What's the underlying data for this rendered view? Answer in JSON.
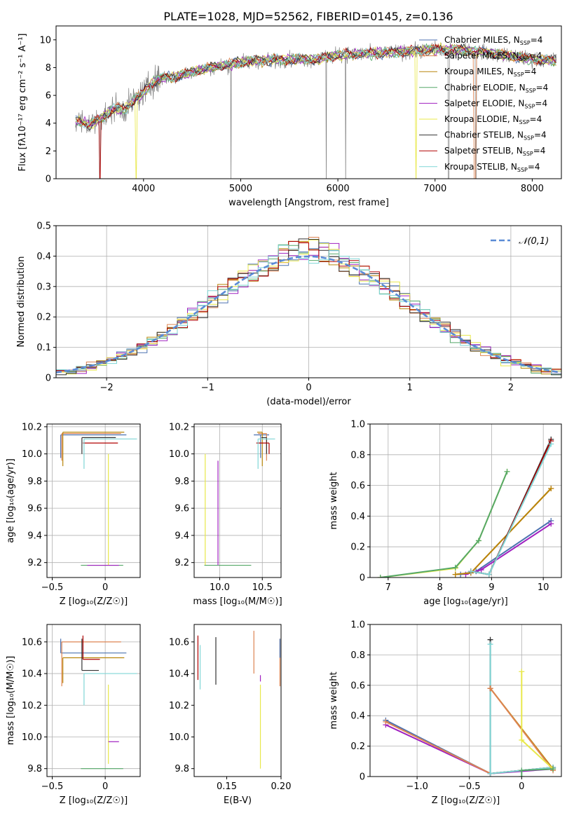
{
  "figure_title": "PLATE=1028, MJD=52562, FIBERID=0145, z=0.136",
  "colors": {
    "chabrier_miles": "#4c72b0",
    "salpeter_miles": "#dd8452",
    "kroupa_miles": "#b8860b",
    "chabrier_elodie": "#55a868",
    "salpeter_elodie": "#a020c0",
    "kroupa_elodie": "#e8e84a",
    "chabrier_stelib": "#333333",
    "salpeter_stelib": "#b00000",
    "kroupa_stelib": "#7fd6d6",
    "normal": "#5b8bd6",
    "data": "#808080"
  },
  "chart_data": [
    {
      "id": "spectrum",
      "type": "line",
      "xlabel": "wavelength [Angstrom, rest frame]",
      "ylabel": "Flux [fλ10⁻¹⁷ erg cm⁻² s⁻¹ A⁻¹]",
      "xlim": [
        3100,
        8300
      ],
      "ylim": [
        0,
        11
      ],
      "xticks": [
        4000,
        5000,
        6000,
        7000,
        8000
      ],
      "yticks": [
        0,
        2,
        4,
        6,
        8,
        10
      ],
      "grid": false,
      "legend_position": "top-right",
      "series_names": [
        "Chabrier MILES, N_SSP=4",
        "Salpeter MILES, N_SSP=4",
        "Kroupa MILES, N_SSP=4",
        "Chabrier ELODIE, N_SSP=4",
        "Salpeter ELODIE, N_SSP=4",
        "Kroupa ELODIE, N_SSP=4",
        "Chabrier STELIB, N_SSP=4",
        "Salpeter STELIB, N_SSP=4",
        "Kroupa STELIB, N_SSP=4"
      ],
      "continuum": [
        [
          3300,
          4.2
        ],
        [
          3450,
          3.9
        ],
        [
          3600,
          4.5
        ],
        [
          3700,
          5.1
        ],
        [
          3800,
          5.0
        ],
        [
          3900,
          5.6
        ],
        [
          4000,
          6.2
        ],
        [
          4100,
          7.0
        ],
        [
          4200,
          7.3
        ],
        [
          4300,
          7.3
        ],
        [
          4500,
          7.7
        ],
        [
          4700,
          8.0
        ],
        [
          5000,
          8.4
        ],
        [
          5200,
          8.5
        ],
        [
          5500,
          8.6
        ],
        [
          5800,
          8.6
        ],
        [
          6000,
          8.9
        ],
        [
          6300,
          9.0
        ],
        [
          6600,
          9.1
        ],
        [
          7000,
          9.3
        ],
        [
          7300,
          9.3
        ],
        [
          7600,
          9.0
        ],
        [
          7800,
          8.8
        ],
        [
          8000,
          8.6
        ],
        [
          8200,
          8.5
        ]
      ]
    },
    {
      "id": "residuals",
      "type": "line",
      "xlabel": "(data-model)/error",
      "ylabel": "Normed distribution",
      "xlim": [
        -2.5,
        2.5
      ],
      "ylim": [
        0,
        0.5
      ],
      "xticks": [
        -2,
        -1,
        0,
        1,
        2
      ],
      "yticks": [
        0.0,
        0.1,
        0.2,
        0.3,
        0.4,
        0.5
      ],
      "grid": true,
      "legend_position": "top-right",
      "normal_label": "𝒩(0,1)",
      "normal_mean": 0,
      "normal_std": 1
    },
    {
      "id": "age_vs_z",
      "type": "scatter",
      "xlabel": "Z [log₁₀(Z/Z☉)]",
      "ylabel": "age  [log₁₀(age/yr)]",
      "xlim": [
        -0.55,
        0.33
      ],
      "ylim": [
        9.09,
        10.22
      ],
      "xticks": [
        -0.5,
        0.0
      ],
      "yticks": [
        9.2,
        9.4,
        9.6,
        9.8,
        10.0,
        10.2
      ],
      "grid": true,
      "segments": [
        {
          "s": "chabrier_miles",
          "x": -0.42,
          "y": 10.14,
          "xerr": [
            0.0,
            0.62
          ],
          "yerr": [
            0.17,
            0.0
          ]
        },
        {
          "s": "salpeter_miles",
          "x": -0.41,
          "y": 10.15,
          "xerr": [
            0.0,
            0.56
          ],
          "yerr": [
            0.2,
            0.0
          ]
        },
        {
          "s": "kroupa_miles",
          "x": -0.4,
          "y": 10.16,
          "xerr": [
            0.0,
            0.58
          ],
          "yerr": [
            0.25,
            0.0
          ]
        },
        {
          "s": "kroupa_elodie",
          "x": 0.03,
          "y": 10.0,
          "xerr": [
            0.0,
            0.0
          ],
          "yerr": [
            0.82,
            0.0
          ]
        },
        {
          "s": "chabrier_elodie",
          "x": 0.02,
          "y": 9.18,
          "xerr": [
            0.25,
            0.15
          ],
          "yerr": [
            0.0,
            0.0
          ]
        },
        {
          "s": "salpeter_elodie",
          "x": 0.03,
          "y": 9.18,
          "xerr": [
            0.2,
            0.1
          ],
          "yerr": [
            0.0,
            0.0
          ]
        },
        {
          "s": "chabrier_stelib",
          "x": -0.22,
          "y": 10.12,
          "xerr": [
            0.0,
            0.32
          ],
          "yerr": [
            0.12,
            0.0
          ]
        },
        {
          "s": "salpeter_stelib",
          "x": -0.21,
          "y": 10.08,
          "xerr": [
            0.0,
            0.33
          ],
          "yerr": [
            0.0,
            0.0
          ]
        },
        {
          "s": "kroupa_stelib",
          "x": -0.2,
          "y": 10.11,
          "xerr": [
            0.0,
            0.5
          ],
          "yerr": [
            0.22,
            0.0
          ]
        }
      ]
    },
    {
      "id": "age_vs_mass",
      "type": "scatter",
      "xlabel": "mass [log₁₀(M/M☉)]",
      "ylabel": "",
      "xlim": [
        9.7,
        10.72
      ],
      "ylim": [
        9.09,
        10.22
      ],
      "xticks": [
        10.0,
        10.5
      ],
      "yticks": [
        9.2,
        9.4,
        9.6,
        9.8,
        10.0,
        10.2
      ],
      "grid": true,
      "segments": [
        {
          "s": "chabrier_miles",
          "x": 10.48,
          "y": 10.14,
          "xerr": [
            0.08,
            0.1
          ],
          "yerr": [
            0.17,
            0.0
          ]
        },
        {
          "s": "salpeter_miles",
          "x": 10.55,
          "y": 10.15,
          "xerr": [
            0.1,
            0.0
          ],
          "yerr": [
            0.2,
            0.0
          ]
        },
        {
          "s": "kroupa_miles",
          "x": 10.5,
          "y": 10.16,
          "xerr": [
            0.06,
            0.0
          ],
          "yerr": [
            0.25,
            0.0
          ]
        },
        {
          "s": "kroupa_elodie",
          "x": 9.83,
          "y": 10.0,
          "xerr": [
            0.0,
            0.0
          ],
          "yerr": [
            0.82,
            0.0
          ]
        },
        {
          "s": "chabrier_elodie",
          "x": 9.82,
          "y": 9.18,
          "xerr": [
            0.0,
            0.55
          ],
          "yerr": [
            0.0,
            0.0
          ]
        },
        {
          "s": "salpeter_elodie",
          "x": 9.98,
          "y": 9.95,
          "xerr": [
            0.0,
            0.0
          ],
          "yerr": [
            0.77,
            0.0
          ]
        },
        {
          "s": "chabrier_stelib",
          "x": 10.55,
          "y": 10.12,
          "xerr": [
            0.06,
            0.0
          ],
          "yerr": [
            0.12,
            0.0
          ]
        },
        {
          "s": "salpeter_stelib",
          "x": 10.58,
          "y": 10.08,
          "xerr": [
            0.15,
            0.0
          ],
          "yerr": [
            0.08,
            0.0
          ]
        },
        {
          "s": "kroupa_stelib",
          "x": 10.45,
          "y": 10.11,
          "xerr": [
            0.0,
            0.2
          ],
          "yerr": [
            0.22,
            0.0
          ]
        }
      ]
    },
    {
      "id": "weight_vs_age",
      "type": "line",
      "xlabel": "age  [log₁₀(age/yr)]",
      "ylabel": "mass weight",
      "xlim": [
        6.65,
        10.35
      ],
      "ylim": [
        0,
        1.0
      ],
      "xticks": [
        7,
        8,
        9,
        10
      ],
      "yticks": [
        0.0,
        0.2,
        0.4,
        0.6,
        0.8,
        1.0
      ],
      "grid": true,
      "series": [
        {
          "s": "kroupa_elodie",
          "x": [
            6.85,
            8.3,
            8.75,
            9.3
          ],
          "y": [
            0.0,
            0.06,
            0.24,
            0.69
          ]
        },
        {
          "s": "chabrier_elodie",
          "x": [
            6.85,
            8.3,
            8.75,
            9.3
          ],
          "y": [
            0.0,
            0.065,
            0.24,
            0.69
          ]
        },
        {
          "s": "salpeter_miles",
          "x": [
            8.3,
            8.6,
            10.15
          ],
          "y": [
            0.02,
            0.03,
            0.58
          ]
        },
        {
          "s": "chabrier_miles",
          "x": [
            8.4,
            8.7,
            10.15
          ],
          "y": [
            0.02,
            0.04,
            0.37
          ]
        },
        {
          "s": "salpeter_elodie",
          "x": [
            8.5,
            8.8,
            10.15
          ],
          "y": [
            0.02,
            0.05,
            0.35
          ]
        },
        {
          "s": "kroupa_miles",
          "x": [
            8.3,
            8.6,
            10.15
          ],
          "y": [
            0.02,
            0.03,
            0.58
          ]
        },
        {
          "s": "chabrier_stelib",
          "x": [
            8.6,
            8.95,
            10.15
          ],
          "y": [
            0.04,
            0.02,
            0.9
          ]
        },
        {
          "s": "salpeter_stelib",
          "x": [
            8.6,
            8.95,
            10.15
          ],
          "y": [
            0.04,
            0.02,
            0.89
          ]
        },
        {
          "s": "kroupa_stelib",
          "x": [
            8.6,
            8.95,
            10.15
          ],
          "y": [
            0.04,
            0.02,
            0.87
          ]
        }
      ]
    },
    {
      "id": "mass_vs_z",
      "type": "scatter",
      "xlabel": "Z [log₁₀(Z/Z☉)]",
      "ylabel": "mass [log₁₀(M/M☉)]",
      "xlim": [
        -0.55,
        0.33
      ],
      "ylim": [
        9.75,
        10.71
      ],
      "xticks": [
        -0.5,
        0.0
      ],
      "yticks": [
        9.8,
        10.0,
        10.2,
        10.4,
        10.6
      ],
      "grid": true,
      "segments": [
        {
          "s": "chabrier_miles",
          "x": -0.42,
          "y": 10.53,
          "xerr": [
            0.0,
            0.62
          ],
          "yerr": [
            0.0,
            0.09
          ]
        },
        {
          "s": "salpeter_miles",
          "x": -0.41,
          "y": 10.6,
          "xerr": [
            0.0,
            0.56
          ],
          "yerr": [
            0.28,
            0.0
          ]
        },
        {
          "s": "kroupa_miles",
          "x": -0.4,
          "y": 10.5,
          "xerr": [
            0.0,
            0.58
          ],
          "yerr": [
            0.16,
            0.0
          ]
        },
        {
          "s": "kroupa_elodie",
          "x": 0.03,
          "y": 10.33,
          "xerr": [
            0.0,
            0.0
          ],
          "yerr": [
            0.5,
            0.0
          ]
        },
        {
          "s": "chabrier_elodie",
          "x": 0.02,
          "y": 9.8,
          "xerr": [
            0.25,
            0.15
          ],
          "yerr": [
            0.0,
            0.0
          ]
        },
        {
          "s": "salpeter_elodie",
          "x": 0.03,
          "y": 9.97,
          "xerr": [
            0.0,
            0.1
          ],
          "yerr": [
            0.0,
            0.0
          ]
        },
        {
          "s": "chabrier_stelib",
          "x": -0.22,
          "y": 10.42,
          "xerr": [
            0.0,
            0.16
          ],
          "yerr": [
            0.0,
            0.2
          ]
        },
        {
          "s": "salpeter_stelib",
          "x": -0.21,
          "y": 10.49,
          "xerr": [
            0.0,
            0.16
          ],
          "yerr": [
            0.0,
            0.15
          ]
        },
        {
          "s": "kroupa_stelib",
          "x": -0.2,
          "y": 10.4,
          "xerr": [
            0.0,
            0.5
          ],
          "yerr": [
            0.2,
            0.0
          ]
        }
      ]
    },
    {
      "id": "mass_vs_ebv",
      "type": "scatter",
      "xlabel": "E(B-V)",
      "ylabel": "",
      "xlim": [
        0.12,
        0.2
      ],
      "ylim": [
        9.75,
        10.71
      ],
      "xticks": [
        0.15,
        0.2
      ],
      "yticks": [
        9.8,
        10.0,
        10.2,
        10.4,
        10.6
      ],
      "grid": false,
      "segments": [
        {
          "s": "salpeter_stelib",
          "x": 0.1235,
          "y": 10.5,
          "yerr": [
            0.14,
            0.14
          ]
        },
        {
          "s": "kroupa_stelib",
          "x": 0.1255,
          "y": 10.45,
          "yerr": [
            0.15,
            0.13
          ]
        },
        {
          "s": "chabrier_stelib",
          "x": 0.14,
          "y": 10.48,
          "yerr": [
            0.15,
            0.15
          ]
        },
        {
          "s": "salpeter_miles",
          "x": 0.175,
          "y": 10.52,
          "yerr": [
            0.12,
            0.15
          ]
        },
        {
          "s": "salpeter_elodie",
          "x": 0.181,
          "y": 10.35,
          "yerr": [
            0.0,
            0.04
          ]
        },
        {
          "s": "kroupa_elodie",
          "x": 0.181,
          "y": 10.33,
          "yerr": [
            0.53,
            0.0
          ]
        },
        {
          "s": "salpeter_miles",
          "x": 0.199,
          "y": 10.47,
          "yerr": [
            0.15,
            0.15
          ]
        },
        {
          "s": "chabrier_miles",
          "x": 0.199,
          "y": 10.5,
          "yerr": [
            0.0,
            0.12
          ]
        }
      ]
    },
    {
      "id": "weight_vs_z",
      "type": "line",
      "xlabel": "Z [log₁₀(Z/Z☉)]",
      "ylabel": "mass weight",
      "xlim": [
        -1.45,
        0.38
      ],
      "ylim": [
        0,
        1.0
      ],
      "xticks": [
        -1.0,
        -0.5,
        0.0
      ],
      "yticks": [
        0.0,
        0.2,
        0.4,
        0.6,
        0.8,
        1.0
      ],
      "grid": true,
      "series": [
        {
          "s": "chabrier_miles",
          "x": [
            -1.3,
            -0.3,
            0.3
          ],
          "y": [
            0.37,
            0.02,
            0.06
          ]
        },
        {
          "s": "salpeter_elodie",
          "x": [
            -1.3,
            -0.3,
            0.3
          ],
          "y": [
            0.34,
            0.02,
            0.05
          ]
        },
        {
          "s": "salpeter_miles",
          "x": [
            -1.3,
            -0.3,
            0.3
          ],
          "y": [
            0.36,
            0.02,
            0.06
          ]
        },
        {
          "s": "chabrier_stelib",
          "x": [
            -0.3,
            -0.3,
            0.3
          ],
          "y": [
            0.9,
            0.02,
            0.06
          ]
        },
        {
          "s": "kroupa_stelib",
          "x": [
            -0.3,
            -0.3,
            0.3
          ],
          "y": [
            0.87,
            0.02,
            0.06
          ]
        },
        {
          "s": "salpeter_stelib",
          "x": [
            -0.3,
            -0.3
          ],
          "y": [
            0.58,
            0.58
          ]
        },
        {
          "s": "kroupa_miles",
          "x": [
            -0.3,
            0.3
          ],
          "y": [
            0.58,
            0.05
          ]
        },
        {
          "s": "salpeter_miles",
          "x": [
            -0.3,
            0.3
          ],
          "y": [
            0.58,
            0.04
          ]
        },
        {
          "s": "kroupa_elodie",
          "x": [
            0.0,
            0.0,
            0.3
          ],
          "y": [
            0.69,
            0.24,
            0.05
          ]
        },
        {
          "s": "chabrier_elodie",
          "x": [
            0.0,
            0.0,
            0.3
          ],
          "y": [
            0.0,
            0.04,
            0.05
          ]
        }
      ]
    }
  ]
}
